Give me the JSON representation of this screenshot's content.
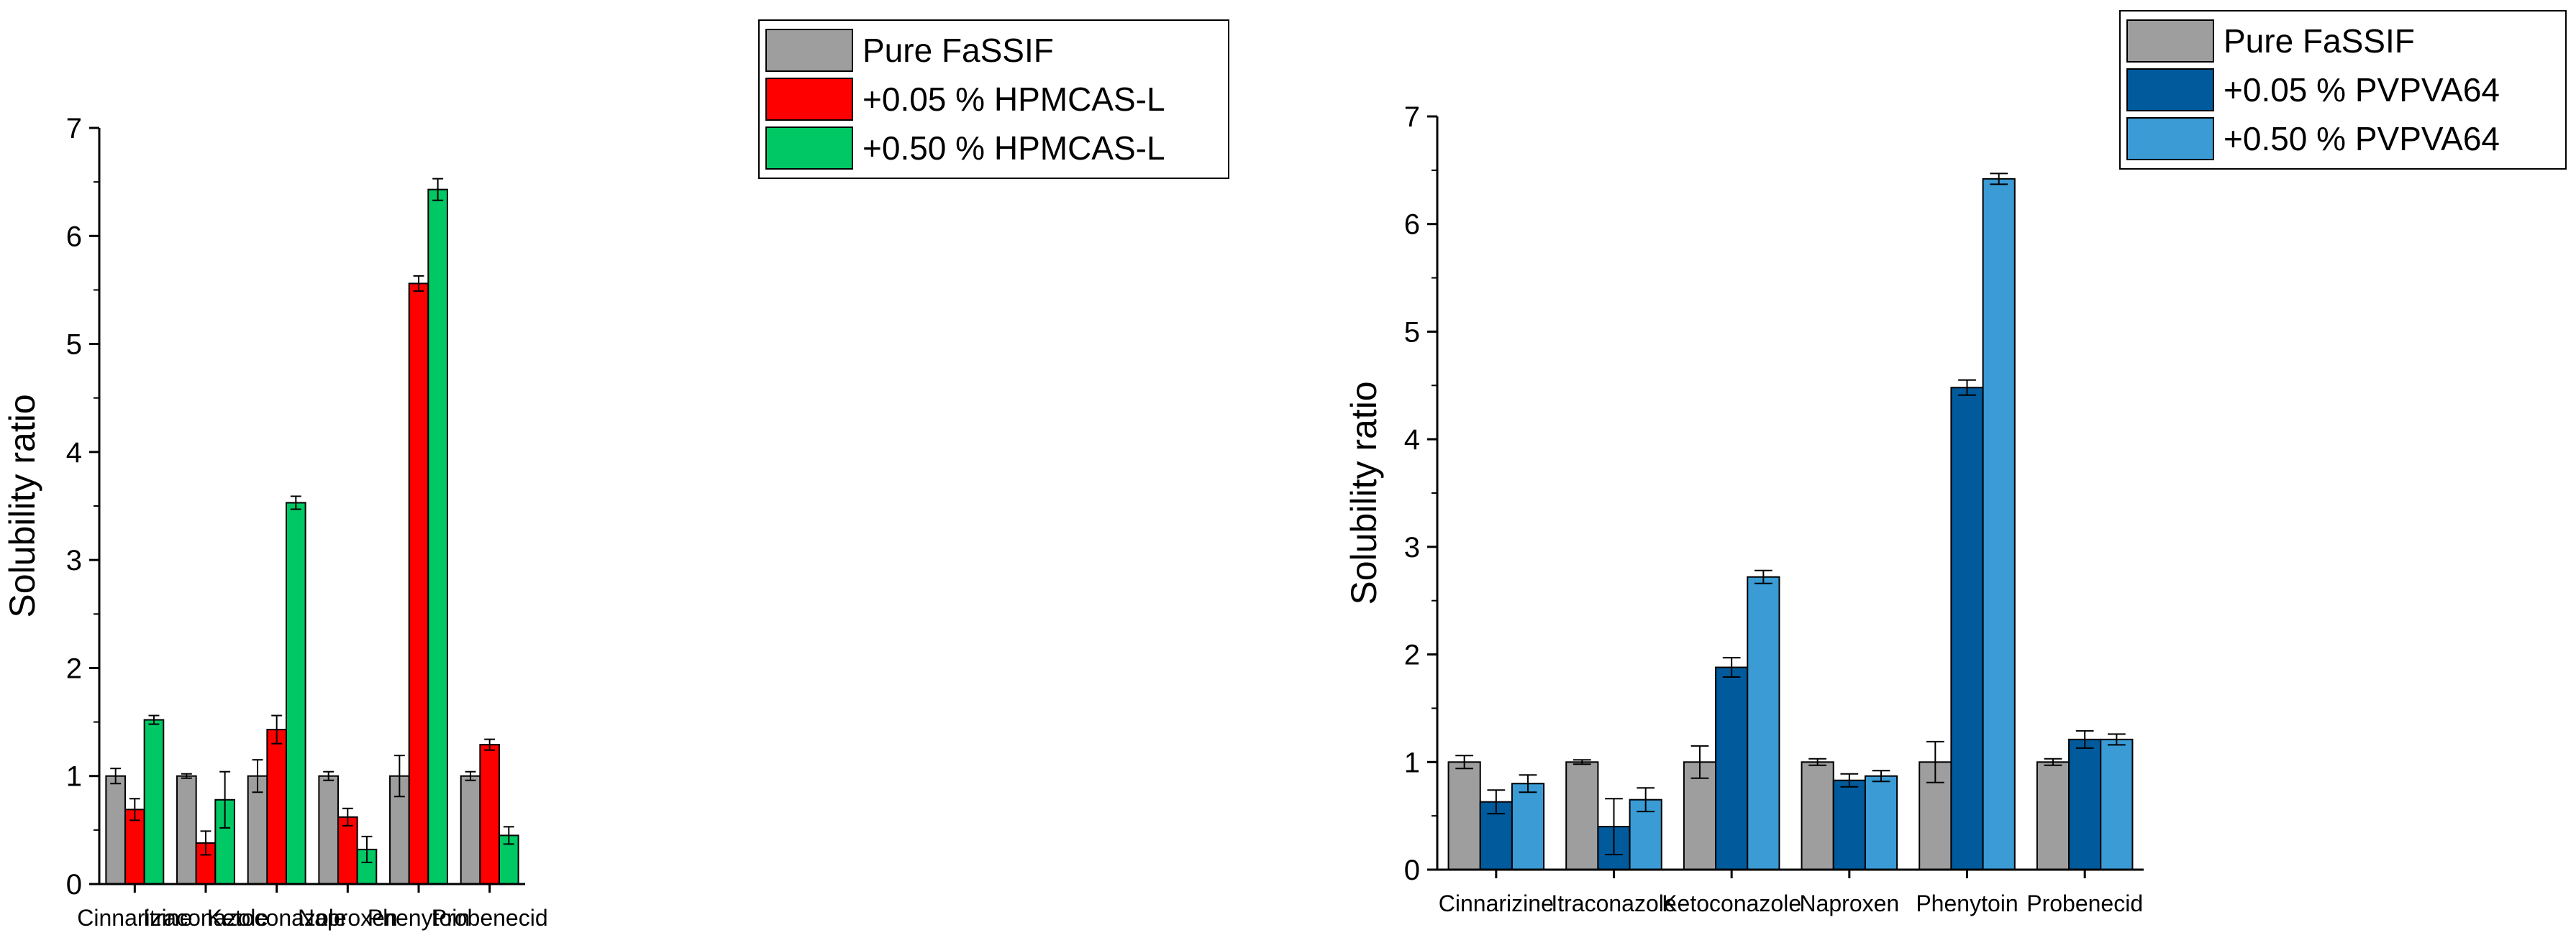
{
  "chart_data": [
    {
      "type": "bar",
      "title": "",
      "xlabel": "",
      "ylabel": "Solubility ratio",
      "ylim": [
        0,
        7
      ],
      "yticks": [
        0,
        1,
        2,
        3,
        4,
        5,
        6,
        7
      ],
      "grid": false,
      "legend_position": "top-right",
      "categories": [
        "Cinnarizine",
        "Itraconazole",
        "Ketoconazole",
        "Naproxen",
        "Phenytoin",
        "Probenecid"
      ],
      "series": [
        {
          "name": "Pure FaSSIF",
          "color": "#9e9e9e",
          "values": [
            1.0,
            1.0,
            1.0,
            1.0,
            1.0,
            1.0
          ],
          "errors": [
            0.07,
            0.02,
            0.15,
            0.04,
            0.19,
            0.04
          ]
        },
        {
          "name": "+0.05 % HPMCAS-L",
          "color": "#ff0000",
          "values": [
            0.69,
            0.38,
            1.43,
            0.62,
            5.56,
            1.29
          ],
          "errors": [
            0.1,
            0.11,
            0.13,
            0.08,
            0.07,
            0.05
          ]
        },
        {
          "name": "+0.50 % HPMCAS-L",
          "color": "#00c864",
          "values": [
            1.52,
            0.78,
            3.53,
            0.32,
            6.43,
            0.45
          ],
          "errors": [
            0.04,
            0.26,
            0.06,
            0.12,
            0.1,
            0.08
          ]
        }
      ]
    },
    {
      "type": "bar",
      "title": "",
      "xlabel": "",
      "ylabel": "Solubility ratio",
      "ylim": [
        0,
        7
      ],
      "yticks": [
        0,
        1,
        2,
        3,
        4,
        5,
        6,
        7
      ],
      "grid": false,
      "legend_position": "top-right",
      "categories": [
        "Cinnarizine",
        "Itraconazole",
        "Ketoconazole",
        "Naproxen",
        "Phenytoin",
        "Probenecid"
      ],
      "series": [
        {
          "name": "Pure FaSSIF",
          "color": "#9e9e9e",
          "values": [
            1.0,
            1.0,
            1.0,
            1.0,
            1.0,
            1.0
          ],
          "errors": [
            0.06,
            0.02,
            0.15,
            0.03,
            0.19,
            0.03
          ]
        },
        {
          "name": "+0.05 % PVPVA64",
          "color": "#005a9c",
          "values": [
            0.63,
            0.4,
            1.88,
            0.83,
            4.48,
            1.21
          ],
          "errors": [
            0.11,
            0.26,
            0.09,
            0.06,
            0.07,
            0.08
          ]
        },
        {
          "name": "+0.50 % PVPVA64",
          "color": "#3a9bd5",
          "values": [
            0.8,
            0.65,
            2.72,
            0.87,
            6.42,
            1.21
          ],
          "errors": [
            0.08,
            0.11,
            0.06,
            0.05,
            0.05,
            0.05
          ]
        }
      ]
    }
  ]
}
